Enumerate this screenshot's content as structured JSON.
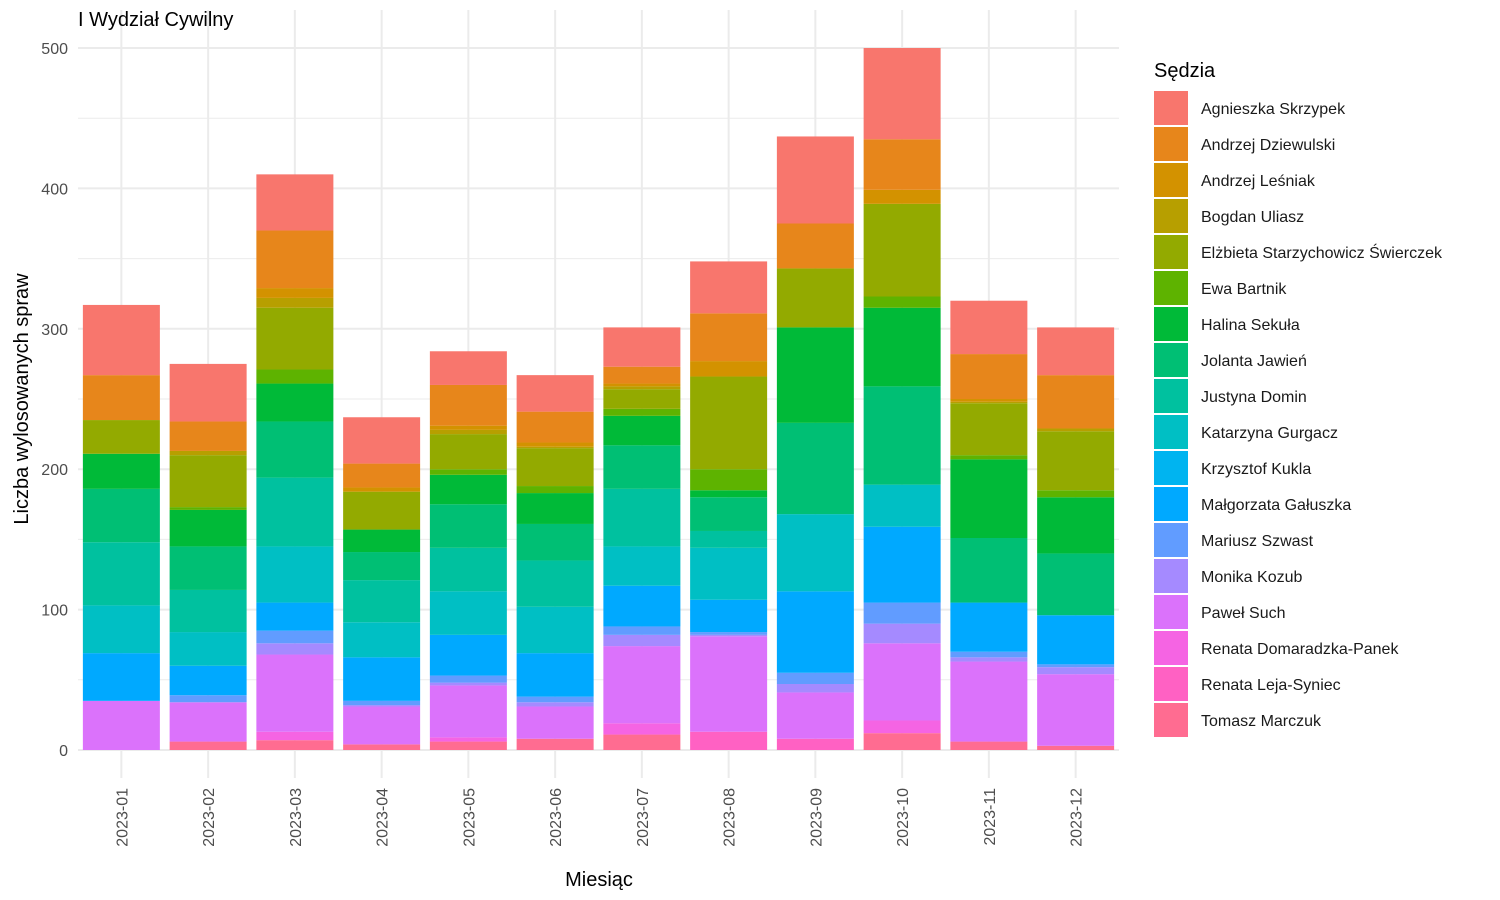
{
  "chart_data": {
    "type": "bar",
    "stacked": true,
    "title": "I Wydział Cywilny",
    "xlabel": "Miesiąc",
    "ylabel": "Liczba wylosowanych spraw",
    "ylim": [
      0,
      510
    ],
    "y_ticks": [
      0,
      100,
      200,
      300,
      400,
      500
    ],
    "grid": true,
    "legend_title": "Sędzia",
    "legend_position": "right",
    "categories": [
      "2023-01",
      "2023-02",
      "2023-03",
      "2023-04",
      "2023-05",
      "2023-06",
      "2023-07",
      "2023-08",
      "2023-09",
      "2023-10",
      "2023-11",
      "2023-12"
    ],
    "series": [
      {
        "name": "Agnieszka Skrzypek",
        "color": "#F8766D",
        "values": [
          50,
          41,
          40,
          33,
          24,
          26,
          28,
          37,
          62,
          65,
          38,
          34
        ]
      },
      {
        "name": "Andrzej Dziewulski",
        "color": "#E7861B",
        "values": [
          32,
          21,
          41,
          17,
          29,
          22,
          12,
          34,
          32,
          36,
          32,
          38
        ]
      },
      {
        "name": "Andrzej Leśniak",
        "color": "#D39200",
        "values": [
          0,
          0,
          7,
          3,
          3,
          3,
          2,
          11,
          0,
          10,
          2,
          0
        ]
      },
      {
        "name": "Bogdan Uliasz",
        "color": "#B79F00",
        "values": [
          0,
          3,
          7,
          0,
          3,
          1,
          2,
          0,
          0,
          0,
          1,
          2
        ]
      },
      {
        "name": "Elżbieta Starzychowicz Świerczek",
        "color": "#93AA00",
        "values": [
          24,
          37,
          44,
          27,
          25,
          27,
          14,
          66,
          42,
          66,
          37,
          42
        ]
      },
      {
        "name": "Ewa Bartnik",
        "color": "#5EB300",
        "values": [
          0,
          2,
          10,
          0,
          4,
          5,
          5,
          15,
          0,
          8,
          3,
          5
        ]
      },
      {
        "name": "Halina Sekuła",
        "color": "#00BA38",
        "values": [
          25,
          26,
          27,
          16,
          21,
          22,
          21,
          5,
          68,
          56,
          56,
          40
        ]
      },
      {
        "name": "Jolanta Jawień",
        "color": "#00BF74",
        "values": [
          38,
          31,
          40,
          20,
          31,
          26,
          31,
          24,
          65,
          70,
          46,
          44
        ]
      },
      {
        "name": "Justyna Domin",
        "color": "#00C19F",
        "values": [
          45,
          30,
          49,
          30,
          31,
          33,
          41,
          12,
          0,
          0,
          0,
          0
        ]
      },
      {
        "name": "Katarzyna Gurgacz",
        "color": "#00BFC4",
        "values": [
          34,
          24,
          40,
          25,
          31,
          33,
          28,
          37,
          55,
          30,
          0,
          0
        ]
      },
      {
        "name": "Krzysztof Kukla",
        "color": "#00B4F0",
        "values": [
          0,
          0,
          0,
          0,
          0,
          0,
          0,
          0,
          0,
          0,
          0,
          0
        ]
      },
      {
        "name": "Małgorzata Gałuszka",
        "color": "#00A9FF",
        "values": [
          34,
          21,
          20,
          31,
          29,
          31,
          29,
          23,
          58,
          54,
          35,
          35
        ]
      },
      {
        "name": "Mariusz Szwast",
        "color": "#619CFF",
        "values": [
          0,
          5,
          9,
          3,
          5,
          4,
          6,
          2,
          8,
          15,
          4,
          2
        ]
      },
      {
        "name": "Monika Kozub",
        "color": "#A58AFF",
        "values": [
          0,
          0,
          8,
          1,
          2,
          3,
          8,
          1,
          6,
          14,
          3,
          5
        ]
      },
      {
        "name": "Paweł Such",
        "color": "#DB72FB",
        "values": [
          35,
          28,
          55,
          27,
          37,
          23,
          55,
          68,
          33,
          55,
          57,
          51
        ]
      },
      {
        "name": "Renata Domaradzka-Panek",
        "color": "#F564E3",
        "values": [
          0,
          0,
          6,
          0,
          3,
          0,
          8,
          0,
          0,
          9,
          0,
          0
        ]
      },
      {
        "name": "Renata Leja-Syniec",
        "color": "#FF61C3",
        "values": [
          0,
          0,
          0,
          0,
          0,
          0,
          0,
          13,
          8,
          0,
          0,
          0
        ]
      },
      {
        "name": "Tomasz Marczuk",
        "color": "#FF6C91",
        "values": [
          0,
          6,
          7,
          4,
          6,
          8,
          11,
          0,
          0,
          12,
          6,
          3
        ]
      }
    ]
  }
}
